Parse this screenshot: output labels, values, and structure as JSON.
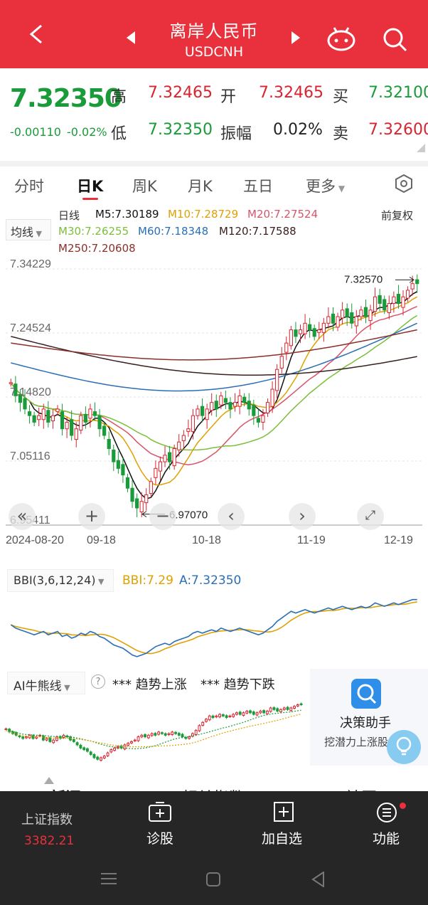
{
  "header": {
    "title": "离岸人民币",
    "symbol": "USDCNH"
  },
  "quote": {
    "last_price": "7.32350",
    "change": "-0.00110",
    "change_pct": "-0.02%",
    "labels": {
      "high": "高",
      "low": "低",
      "open": "开",
      "amplitude": "振幅",
      "buy": "买",
      "sell": "卖"
    },
    "high": "7.32465",
    "low": "7.32350",
    "open": "7.32465",
    "amplitude": "0.02%",
    "buy": "7.32100",
    "sell": "7.32600"
  },
  "tabs": [
    "分时",
    "日K",
    "周K",
    "月K",
    "五日",
    "更多"
  ],
  "active_tab": "日K",
  "ma": {
    "selector": "均线",
    "period": "日线",
    "adjust": "前复权",
    "m5": "M5:7.30189",
    "m10": "M10:7.28729",
    "m20": "M20:7.27524",
    "m30": "M30:7.26255",
    "m60": "M60:7.18348",
    "m120": "M120:7.17588",
    "m250": "M250:7.20608"
  },
  "colors": {
    "brand": "#e8313c",
    "up": "#d8242f",
    "down": "#1a9b3a",
    "m5": "#111111",
    "m10": "#e0a000",
    "m20": "#d9546b",
    "m30": "#7bbf3a",
    "m60": "#2a6fb5",
    "m120": "#3a1f1f",
    "m250": "#8b2f2a",
    "bbi_line": "#e0a000",
    "bbi_price": "#2a6fb5"
  },
  "chart_data": {
    "type": "candlestick",
    "y_ticks": [
      "7.34229",
      "7.24524",
      "7.14820",
      "7.05116",
      "6.95411"
    ],
    "ylim": [
      6.95411,
      7.34229
    ],
    "x_ticks": [
      "2024-08-20",
      "09-18",
      "10-18",
      "11-19",
      "12-19"
    ],
    "max_label": "7.32570",
    "min_label": "6.97070",
    "close": [
      7.17,
      7.15,
      7.14,
      7.13,
      7.12,
      7.11,
      7.12,
      7.13,
      7.11,
      7.12,
      7.13,
      7.1,
      7.11,
      7.09,
      7.1,
      7.12,
      7.11,
      7.13,
      7.12,
      7.1,
      7.09,
      7.07,
      7.05,
      7.04,
      7.03,
      7.01,
      6.99,
      6.98,
      6.99,
      7.0,
      7.02,
      7.04,
      7.05,
      7.06,
      7.05,
      7.07,
      7.08,
      7.09,
      7.1,
      7.12,
      7.13,
      7.12,
      7.13,
      7.14,
      7.13,
      7.15,
      7.14,
      7.13,
      7.14,
      7.15,
      7.14,
      7.13,
      7.12,
      7.11,
      7.12,
      7.14,
      7.16,
      7.19,
      7.21,
      7.23,
      7.25,
      7.24,
      7.25,
      7.26,
      7.25,
      7.24,
      7.25,
      7.26,
      7.27,
      7.26,
      7.27,
      7.28,
      7.27,
      7.26,
      7.27,
      7.28,
      7.27,
      7.28,
      7.3,
      7.29,
      7.28,
      7.29,
      7.3,
      7.29,
      7.3,
      7.31,
      7.32,
      7.32
    ]
  },
  "controls": [
    "«",
    "+",
    "−",
    "‹",
    "›",
    "⤢"
  ],
  "bbi": {
    "selector": "BBI(3,6,12,24)",
    "bbi_value": "BBI:7.29",
    "a_value": "A:7.32350"
  },
  "ai": {
    "selector": "AI牛熊线",
    "help": "?",
    "up_legend": "*** 趋势上涨",
    "down_legend": "*** 趋势下跌",
    "assistant_title": "决策助手",
    "assistant_sub": "挖潜力上涨股"
  },
  "bottom_bar": {
    "index_name": "上证指数",
    "index_value": "3382.21",
    "items": [
      "诊股",
      "加自选",
      "功能"
    ],
    "hidden_tabs": [
      "新闻",
      "相关指数",
      "社区"
    ]
  }
}
